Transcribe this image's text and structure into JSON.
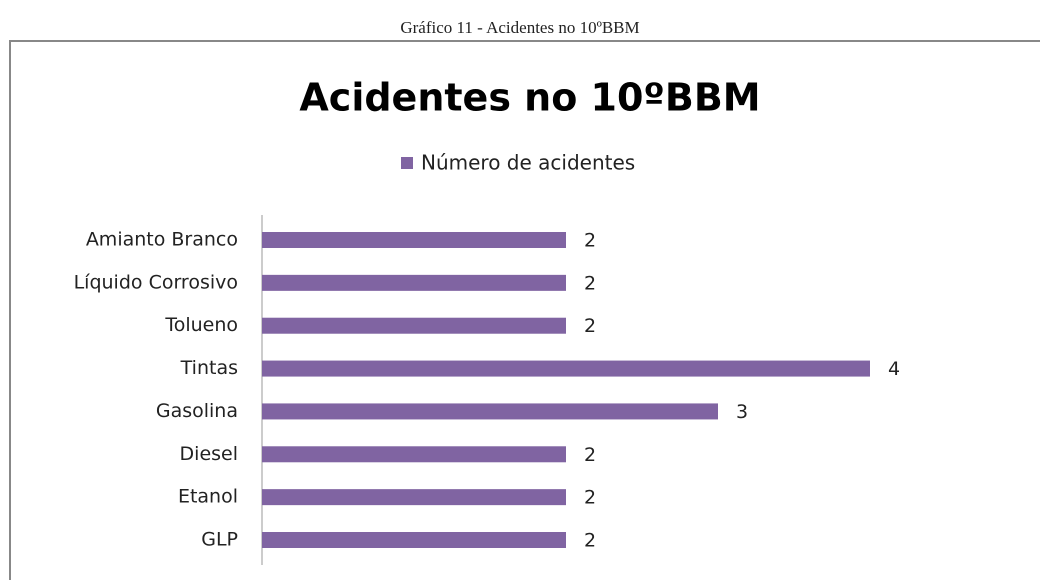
{
  "caption": "Gráfico 11 - Acidentes no 10ºBBM",
  "chart_data": {
    "type": "hbar",
    "title": "Acidentes no 10ºBBM",
    "categories": [
      "Amianto Branco",
      "Líquido Corrosivo",
      "Tolueno",
      "Tintas",
      "Gasolina",
      "Diesel",
      "Etanol",
      "GLP"
    ],
    "series": [
      {
        "name": "Número de acidentes",
        "color": "#8064a2",
        "values": [
          2,
          2,
          2,
          4,
          3,
          2,
          2,
          2
        ]
      }
    ],
    "legend": "top"
  }
}
